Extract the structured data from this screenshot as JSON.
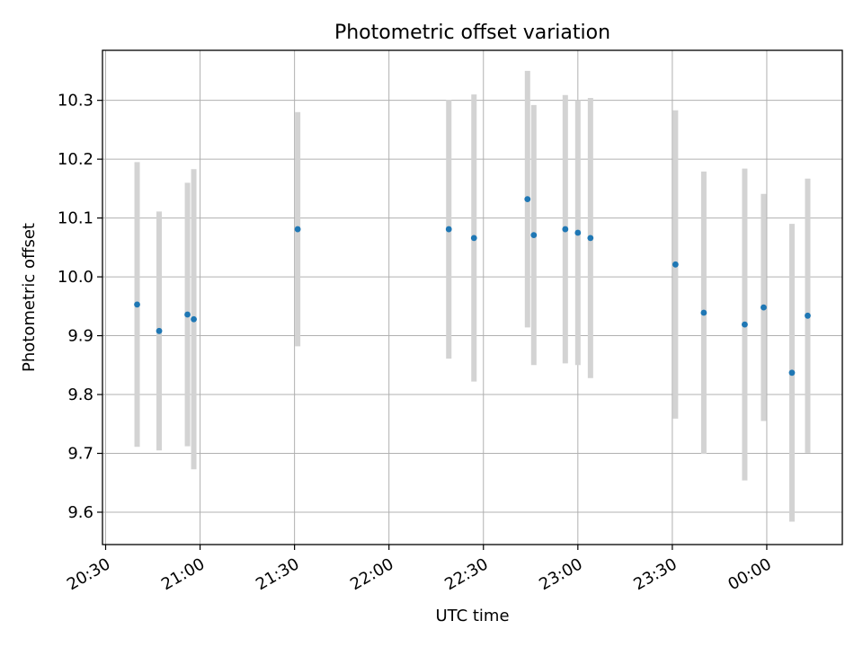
{
  "chart_data": {
    "type": "scatter",
    "title": "Photometric offset variation",
    "xlabel": "UTC time",
    "ylabel": "Photometric offset",
    "x_ticks": [
      "20:30",
      "21:00",
      "21:30",
      "22:00",
      "22:30",
      "23:00",
      "23:30",
      "00:00"
    ],
    "y_ticks": [
      "9.6",
      "9.7",
      "9.8",
      "9.9",
      "10.0",
      "10.1",
      "10.2",
      "10.3"
    ],
    "xlim": [
      "20:29",
      "00:24"
    ],
    "ylim": [
      9.545,
      10.385
    ],
    "grid": true,
    "x_tick_rotation_deg": 30,
    "marker_color": "#1f77b4",
    "errorbar_color": "#d3d3d3",
    "points": [
      {
        "x": "20:40",
        "y": 9.953,
        "err": 0.242
      },
      {
        "x": "20:47",
        "y": 9.908,
        "err": 0.203
      },
      {
        "x": "20:56",
        "y": 9.936,
        "err": 0.224
      },
      {
        "x": "20:58",
        "y": 9.928,
        "err": 0.255
      },
      {
        "x": "21:31",
        "y": 10.081,
        "err": 0.199
      },
      {
        "x": "22:19",
        "y": 10.081,
        "err": 0.22
      },
      {
        "x": "22:27",
        "y": 10.066,
        "err": 0.244
      },
      {
        "x": "22:44",
        "y": 10.132,
        "err": 0.218
      },
      {
        "x": "22:46",
        "y": 10.071,
        "err": 0.221
      },
      {
        "x": "22:56",
        "y": 10.081,
        "err": 0.228
      },
      {
        "x": "23:00",
        "y": 10.075,
        "err": 0.225
      },
      {
        "x": "23:04",
        "y": 10.066,
        "err": 0.238
      },
      {
        "x": "23:31",
        "y": 10.021,
        "err": 0.262
      },
      {
        "x": "23:40",
        "y": 9.939,
        "err": 0.24
      },
      {
        "x": "23:53",
        "y": 9.919,
        "err": 0.265
      },
      {
        "x": "23:59",
        "y": 9.948,
        "err": 0.193
      },
      {
        "x": "00:08",
        "y": 9.837,
        "err": 0.253
      },
      {
        "x": "00:13",
        "y": 9.934,
        "err": 0.233
      }
    ]
  }
}
